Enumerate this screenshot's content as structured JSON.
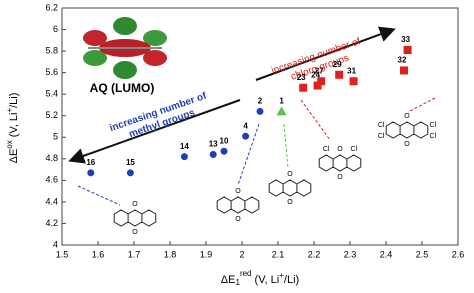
{
  "chart_data": {
    "type": "scatter",
    "x_label": [
      "ΔE",
      "1",
      "red",
      " (V, Li",
      "+",
      "/Li)"
    ],
    "y_label": [
      "ΔE",
      "ox",
      " (V, Li",
      "+",
      "/Li)"
    ],
    "xlim": [
      1.5,
      2.6
    ],
    "xticks": [
      1.5,
      1.6,
      1.7,
      1.8,
      1.9,
      2,
      2.1,
      2.2,
      2.3,
      2.4,
      2.5,
      2.6
    ],
    "ylim": [
      4,
      6.2
    ],
    "yticks": [
      4,
      4.2,
      4.4,
      4.6,
      4.8,
      5,
      5.2,
      5.4,
      5.6,
      5.8,
      6,
      6.2
    ],
    "series": [
      {
        "marker": "circle",
        "color": "#1f3fb4",
        "labels": [
          "16",
          "15",
          "14",
          "13",
          "10",
          "4",
          "2"
        ],
        "x": [
          1.58,
          1.69,
          1.84,
          1.92,
          1.95,
          2.01,
          2.05
        ],
        "values": [
          4.67,
          4.67,
          4.82,
          4.84,
          4.87,
          5.01,
          5.24
        ]
      },
      {
        "marker": "triangle",
        "color": "#5cc24a",
        "labels": [
          "1"
        ],
        "x": [
          2.11
        ],
        "values": [
          5.24
        ]
      },
      {
        "marker": "square",
        "color": "#e0201c",
        "labels": [
          "23",
          "24",
          "27",
          "29",
          "31",
          "32",
          "33"
        ],
        "x": [
          2.17,
          2.21,
          2.22,
          2.27,
          2.31,
          2.45,
          2.46
        ],
        "values": [
          5.46,
          5.48,
          5.52,
          5.58,
          5.52,
          5.62,
          5.81
        ]
      }
    ],
    "annotations": {
      "lumo": "AQ (LUMO)",
      "chloro": [
        "increasing number of",
        "chloro groups"
      ],
      "methyl": [
        "increasing number of",
        "methyl groups"
      ]
    },
    "molecules": [
      [
        "O",
        "O"
      ],
      [
        "O",
        "O"
      ],
      [
        "O",
        "O"
      ],
      [
        "Cl",
        "Cl",
        "O",
        "O"
      ],
      [
        "Cl",
        "Cl",
        "Cl",
        "Cl",
        "O",
        "O"
      ]
    ]
  }
}
